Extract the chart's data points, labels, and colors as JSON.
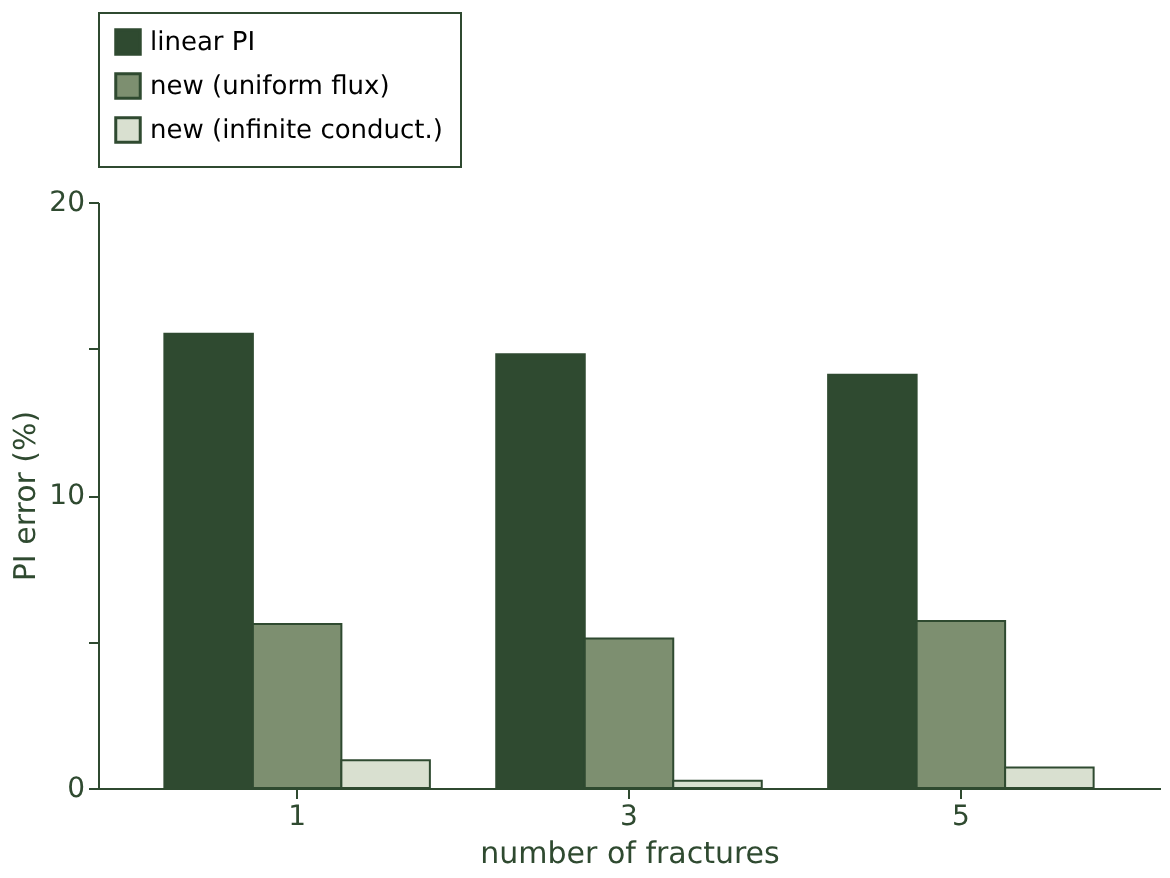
{
  "chart_data": {
    "type": "bar",
    "xlabel": "number of fractures",
    "ylabel": "PI error (%)",
    "categories": [
      "1",
      "3",
      "5"
    ],
    "series": [
      {
        "name": "linear PI",
        "color": "#2f4a30",
        "values": [
          15.5,
          14.8,
          14.1
        ]
      },
      {
        "name": "new (uniform flux)",
        "color": "#7d8f70",
        "values": [
          5.6,
          5.1,
          5.7
        ]
      },
      {
        "name": "new (infinite conduct.)",
        "color": "#d9e0d0",
        "values": [
          0.95,
          0.25,
          0.7
        ]
      }
    ],
    "ylim": [
      0,
      20
    ],
    "yticks": [
      0,
      {
        "value": 5,
        "label": null
      },
      10,
      {
        "value": 15,
        "label": null
      },
      20
    ],
    "grid": false,
    "legend": "top"
  }
}
